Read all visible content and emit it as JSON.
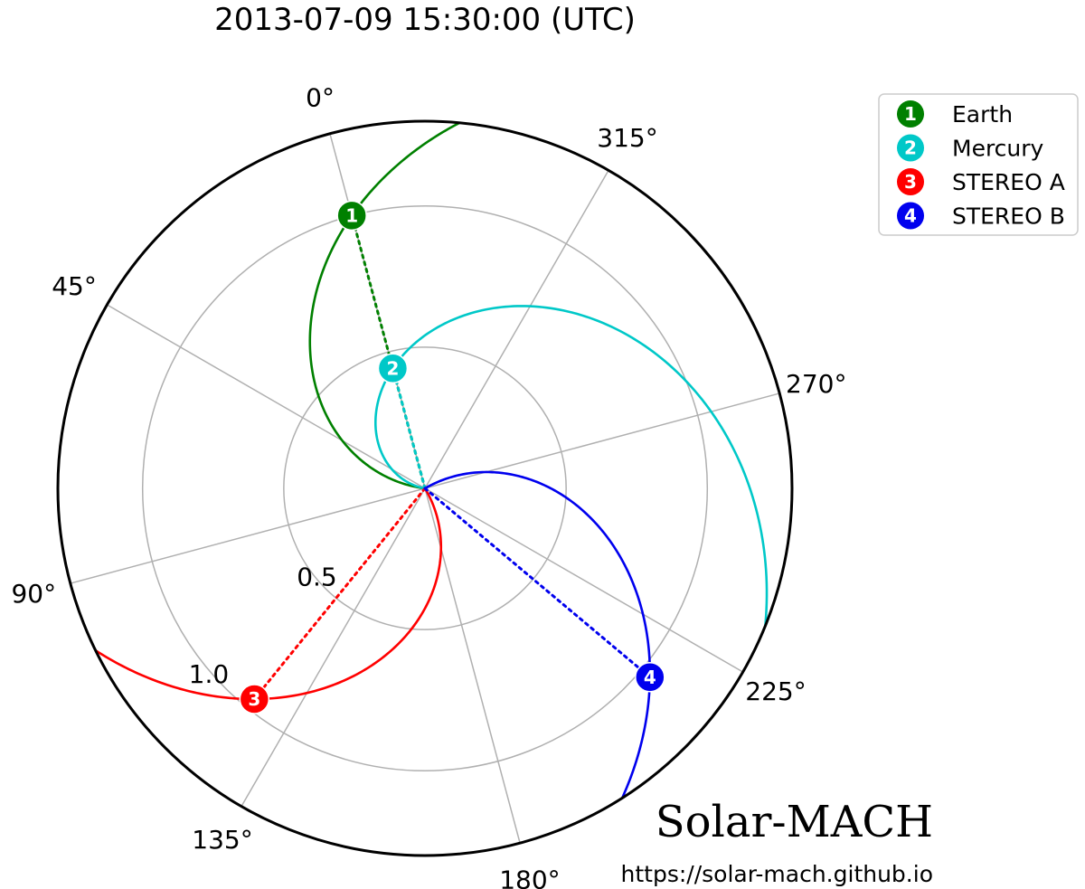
{
  "chart_data": {
    "type": "polar",
    "title": "2013-07-09 15:30:00 (UTC)",
    "radial_ticks": [
      {
        "value": 0.5,
        "label": "0.5"
      },
      {
        "value": 1.0,
        "label": "1.0"
      }
    ],
    "r_max": 1.3,
    "angle_ticks": [
      {
        "deg": 0,
        "label": "0°"
      },
      {
        "deg": 45,
        "label": "45°"
      },
      {
        "deg": 90,
        "label": "90°"
      },
      {
        "deg": 135,
        "label": "135°"
      },
      {
        "deg": 180,
        "label": "180°"
      },
      {
        "deg": 225,
        "label": "225°"
      },
      {
        "deg": 270,
        "label": "270°"
      },
      {
        "deg": 315,
        "label": "315°"
      }
    ],
    "grid": true,
    "legend_position": "top-right",
    "bodies": [
      {
        "num": "1",
        "name": "Earth",
        "color": "#008000",
        "r": 1.0,
        "theta": 0,
        "spiral_turn": 68
      },
      {
        "num": "2",
        "name": "Mercury",
        "color": "#00c8c8",
        "r": 0.44,
        "theta": 0,
        "spiral_turn": 65
      },
      {
        "num": "3",
        "name": "STEREO A",
        "color": "#ff0000",
        "r": 0.96,
        "theta": 126,
        "spiral_turn": 70
      },
      {
        "num": "4",
        "name": "STEREO B",
        "color": "#0000ee",
        "r": 1.04,
        "theta": 215,
        "spiral_turn": 70
      }
    ]
  },
  "branding": {
    "name": "Solar-MACH",
    "url": "https://solar-mach.github.io"
  }
}
